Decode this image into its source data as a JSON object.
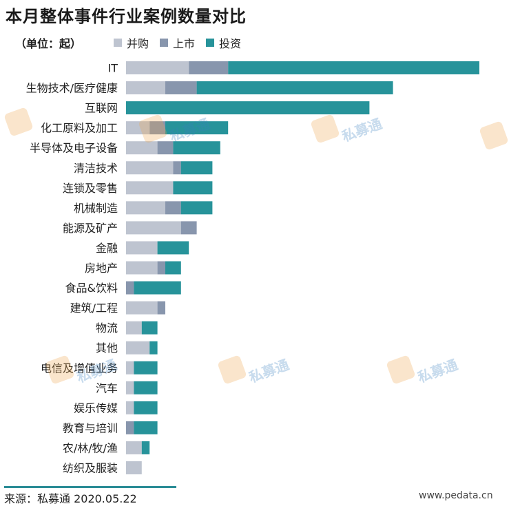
{
  "header": {
    "title": "本月整体事件行业案例数量对比",
    "unit": "（单位：起）"
  },
  "footer": {
    "source": "来源：私募通 2020.05.22",
    "website": "www.pedata.cn"
  },
  "watermark": {
    "text": "私募通"
  },
  "colors": {
    "merger": "#bec4d0",
    "ipo": "#8896ad",
    "investment": "#27939a"
  },
  "chart_data": {
    "type": "bar",
    "orientation": "horizontal",
    "stacked": true,
    "title": "本月整体事件行业案例数量对比",
    "xlabel": "",
    "ylabel": "",
    "xlim": [
      0,
      46
    ],
    "grid": false,
    "legend_position": "top",
    "categories": [
      "IT",
      "生物技术/医疗健康",
      "互联网",
      "化工原料及加工",
      "半导体及电子设备",
      "清洁技术",
      "连锁及零售",
      "机械制造",
      "能源及矿产",
      "金融",
      "房地产",
      "食品&饮料",
      "建筑/工程",
      "物流",
      "其他",
      "电信及增值业务",
      "汽车",
      "娱乐传媒",
      "教育与培训",
      "农/林/牧/渔",
      "纺织及服装"
    ],
    "series": [
      {
        "name": "并购",
        "values": [
          8,
          5,
          0,
          3,
          4,
          6,
          6,
          5,
          7,
          4,
          4,
          0,
          4,
          2,
          3,
          1,
          1,
          1,
          0,
          2,
          2
        ]
      },
      {
        "name": "上市",
        "values": [
          5,
          4,
          0,
          2,
          2,
          1,
          0,
          2,
          2,
          0,
          1,
          1,
          1,
          0,
          0,
          0,
          0,
          0,
          1,
          0,
          0
        ]
      },
      {
        "name": "投资",
        "values": [
          32,
          25,
          31,
          8,
          6,
          4,
          5,
          4,
          0,
          4,
          2,
          6,
          0,
          2,
          1,
          3,
          3,
          3,
          3,
          1,
          0
        ]
      }
    ]
  }
}
